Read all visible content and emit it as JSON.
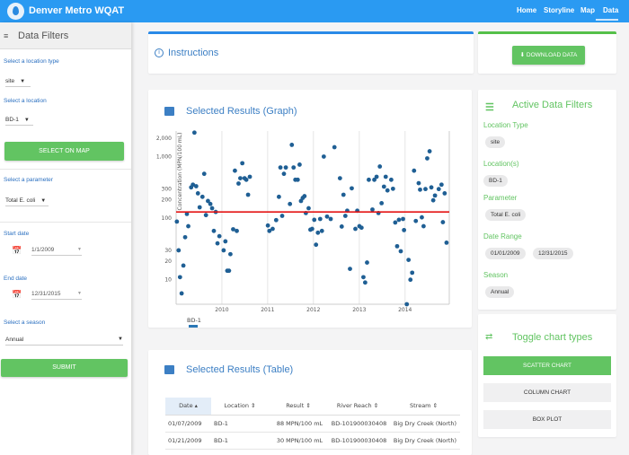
{
  "header": {
    "title": "Denver Metro WQAT",
    "nav": [
      "Home",
      "Storyline",
      "Map",
      "Data"
    ],
    "active": "Data",
    "color": "#2a9af2"
  },
  "sidebar": {
    "title": "Data Filters",
    "location_type_label": "Select a location type",
    "location_type_value": "site",
    "location_label": "Select a location",
    "location_value": "BD-1",
    "select_on_map": "SELECT ON MAP",
    "parameter_label": "Select a parameter",
    "parameter_value": "Total E. coli",
    "start_label": "Start date",
    "start_value": "1/1/2009",
    "end_label": "End date",
    "end_value": "12/31/2015",
    "season_label": "Select a season",
    "season_value": "Annual",
    "submit": "SUBMIT"
  },
  "instructions": {
    "title": "Instructions"
  },
  "download": {
    "label": "DOWNLOAD DATA"
  },
  "graph": {
    "title": "Selected Results (Graph)"
  },
  "table": {
    "title": "Selected Results (Table)",
    "columns": [
      "Date ▴",
      "Location ⇕",
      "Result ⇕",
      "River Reach ⇕",
      "Stream ⇕"
    ],
    "rows": [
      [
        "01/07/2009",
        "BD-1",
        "88 MPN/100 mL",
        "BD-101900030408",
        "Big Dry Creek (North)"
      ],
      [
        "01/21/2009",
        "BD-1",
        "30 MPN/100 mL",
        "BD-101900030408",
        "Big Dry Creek (North)"
      ]
    ]
  },
  "filters": {
    "title": "Active Data Filters",
    "location_type_label": "Location Type",
    "location_type": "site",
    "locations_label": "Location(s)",
    "location": "BD-1",
    "parameter_label": "Parameter",
    "parameter": "Total E. coli",
    "date_range_label": "Date Range",
    "date_start": "01/01/2009",
    "date_end": "12/31/2015",
    "season_label": "Season",
    "season": "Annual"
  },
  "toggle": {
    "title": "Toggle chart types",
    "buttons": [
      "SCATTER CHART",
      "COLUMN CHART",
      "BOX PLOT"
    ],
    "active": "SCATTER CHART"
  },
  "colors": {
    "accent_blue": "#3c7fc4",
    "green": "#62c462",
    "point": "#1f5f94",
    "threshold": "#e41414"
  },
  "chart_data": {
    "type": "scatter",
    "ylabel": "Concentration (MPN/100 mL)",
    "yscale": "log",
    "ylim": [
      4,
      2600
    ],
    "xlim": [
      "2009-01-01",
      "2014-12-20"
    ],
    "xticks": [
      "2010",
      "2011",
      "2012",
      "2013",
      "2014"
    ],
    "yticks": [
      10,
      20,
      30,
      100,
      200,
      300,
      1000,
      2000
    ],
    "ytick_labels": [
      "10",
      "20",
      "30",
      "100",
      "200",
      "300",
      "1,000",
      "2,000"
    ],
    "threshold": 126,
    "legend": "BD-1",
    "legend_placement": "bottom-left",
    "grid": "vertical",
    "series": [
      {
        "name": "BD-1",
        "points": [
          [
            "2009-01-07",
            88
          ],
          [
            "2009-01-21",
            30
          ],
          [
            "2009-02-01",
            11
          ],
          [
            "2009-02-14",
            6
          ],
          [
            "2009-02-28",
            17
          ],
          [
            "2009-03-14",
            49
          ],
          [
            "2009-03-28",
            117
          ],
          [
            "2009-04-08",
            74
          ],
          [
            "2009-05-01",
            316
          ],
          [
            "2009-05-15",
            350
          ],
          [
            "2009-05-27",
            2450
          ],
          [
            "2009-06-10",
            330
          ],
          [
            "2009-06-24",
            253
          ],
          [
            "2009-07-08",
            150
          ],
          [
            "2009-07-30",
            222
          ],
          [
            "2009-08-13",
            525
          ],
          [
            "2009-08-27",
            112
          ],
          [
            "2009-09-12",
            190
          ],
          [
            "2009-10-01",
            170
          ],
          [
            "2009-10-15",
            145
          ],
          [
            "2009-10-29",
            62
          ],
          [
            "2009-11-13",
            126
          ],
          [
            "2009-11-27",
            39
          ],
          [
            "2009-12-12",
            51
          ],
          [
            "2010-01-15",
            30
          ],
          [
            "2010-01-29",
            42
          ],
          [
            "2010-02-13",
            14
          ],
          [
            "2010-02-27",
            14
          ],
          [
            "2010-03-10",
            26
          ],
          [
            "2010-04-01",
            66
          ],
          [
            "2010-04-15",
            590
          ],
          [
            "2010-04-30",
            62
          ],
          [
            "2010-05-14",
            365
          ],
          [
            "2010-05-28",
            445
          ],
          [
            "2010-06-13",
            780
          ],
          [
            "2010-07-01",
            445
          ],
          [
            "2010-07-15",
            420
          ],
          [
            "2010-07-29",
            240
          ],
          [
            "2010-08-12",
            470
          ],
          [
            "2011-01-03",
            76
          ],
          [
            "2011-01-15",
            62
          ],
          [
            "2011-02-10",
            67
          ],
          [
            "2011-03-10",
            93
          ],
          [
            "2011-04-01",
            222
          ],
          [
            "2011-04-13",
            665
          ],
          [
            "2011-04-27",
            109
          ],
          [
            "2011-05-11",
            525
          ],
          [
            "2011-05-26",
            665
          ],
          [
            "2011-06-28",
            170
          ],
          [
            "2011-07-13",
            1550
          ],
          [
            "2011-07-27",
            665
          ],
          [
            "2011-08-10",
            420
          ],
          [
            "2011-08-29",
            420
          ],
          [
            "2011-09-13",
            740
          ],
          [
            "2011-09-24",
            190
          ],
          [
            "2011-10-08",
            213
          ],
          [
            "2011-10-22",
            228
          ],
          [
            "2011-11-02",
            121
          ],
          [
            "2011-11-24",
            145
          ],
          [
            "2011-12-08",
            65
          ],
          [
            "2011-12-22",
            67
          ],
          [
            "2012-01-08",
            94
          ],
          [
            "2012-01-22",
            37
          ],
          [
            "2012-02-06",
            58
          ],
          [
            "2012-02-24",
            97
          ],
          [
            "2012-03-09",
            62
          ],
          [
            "2012-03-24",
            1000
          ],
          [
            "2012-04-19",
            106
          ],
          [
            "2012-05-18",
            97
          ],
          [
            "2012-06-17",
            1420
          ],
          [
            "2012-07-31",
            445
          ],
          [
            "2012-08-14",
            73
          ],
          [
            "2012-08-28",
            240
          ],
          [
            "2012-09-12",
            109
          ],
          [
            "2012-09-27",
            132
          ],
          [
            "2012-10-19",
            15
          ],
          [
            "2012-11-02",
            305
          ],
          [
            "2012-12-01",
            67
          ],
          [
            "2012-12-16",
            132
          ],
          [
            "2013-01-02",
            74
          ],
          [
            "2013-01-19",
            70
          ],
          [
            "2013-02-03",
            11
          ],
          [
            "2013-02-17",
            9
          ],
          [
            "2013-03-04",
            19
          ],
          [
            "2013-03-18",
            420
          ],
          [
            "2013-04-16",
            138
          ],
          [
            "2013-05-01",
            420
          ],
          [
            "2013-05-19",
            470
          ],
          [
            "2013-06-03",
            121
          ],
          [
            "2013-06-14",
            690
          ],
          [
            "2013-06-28",
            175
          ],
          [
            "2013-07-17",
            325
          ],
          [
            "2013-07-31",
            470
          ],
          [
            "2013-08-14",
            282
          ],
          [
            "2013-09-13",
            420
          ],
          [
            "2013-09-27",
            300
          ],
          [
            "2013-10-15",
            85
          ],
          [
            "2013-10-30",
            35
          ],
          [
            "2013-11-13",
            94
          ],
          [
            "2013-11-28",
            29
          ],
          [
            "2013-12-16",
            97
          ],
          [
            "2013-12-24",
            64
          ],
          [
            "2014-01-15",
            4
          ],
          [
            "2014-01-29",
            21
          ],
          [
            "2014-02-13",
            10
          ],
          [
            "2014-02-27",
            13
          ],
          [
            "2014-03-14",
            590
          ],
          [
            "2014-03-28",
            90
          ],
          [
            "2014-04-20",
            370
          ],
          [
            "2014-05-01",
            290
          ],
          [
            "2014-05-15",
            103
          ],
          [
            "2014-05-29",
            74
          ],
          [
            "2014-06-13",
            297
          ],
          [
            "2014-06-27",
            935
          ],
          [
            "2014-07-16",
            1220
          ],
          [
            "2014-07-30",
            316
          ],
          [
            "2014-08-14",
            195
          ],
          [
            "2014-08-28",
            233
          ],
          [
            "2014-09-27",
            297
          ],
          [
            "2014-10-19",
            350
          ],
          [
            "2014-10-30",
            86
          ],
          [
            "2014-11-13",
            253
          ],
          [
            "2014-11-28",
            40
          ]
        ]
      }
    ]
  }
}
